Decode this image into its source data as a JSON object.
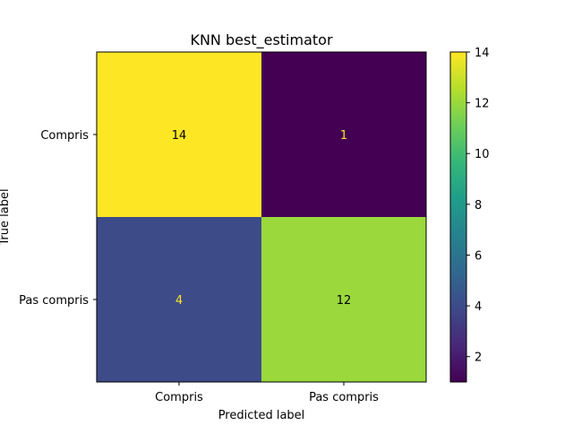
{
  "chart_data": {
    "type": "heatmap",
    "title": "KNN best_estimator",
    "xlabel": "Predicted label",
    "ylabel": "True label",
    "x_categories": [
      "Compris",
      "Pas compris"
    ],
    "y_categories": [
      "Compris",
      "Pas compris"
    ],
    "matrix": [
      [
        14,
        1
      ],
      [
        4,
        12
      ]
    ],
    "colormap": "viridis",
    "colorbar": {
      "min": 1,
      "max": 14,
      "ticks": [
        2,
        4,
        6,
        8,
        10,
        12,
        14
      ],
      "tick_labels": [
        "2",
        "4",
        "6",
        "8",
        "10",
        "12",
        "14"
      ]
    },
    "cell_text_colors": {
      "on_light": "#000000",
      "on_dark": "#fde725"
    },
    "grid": false
  }
}
